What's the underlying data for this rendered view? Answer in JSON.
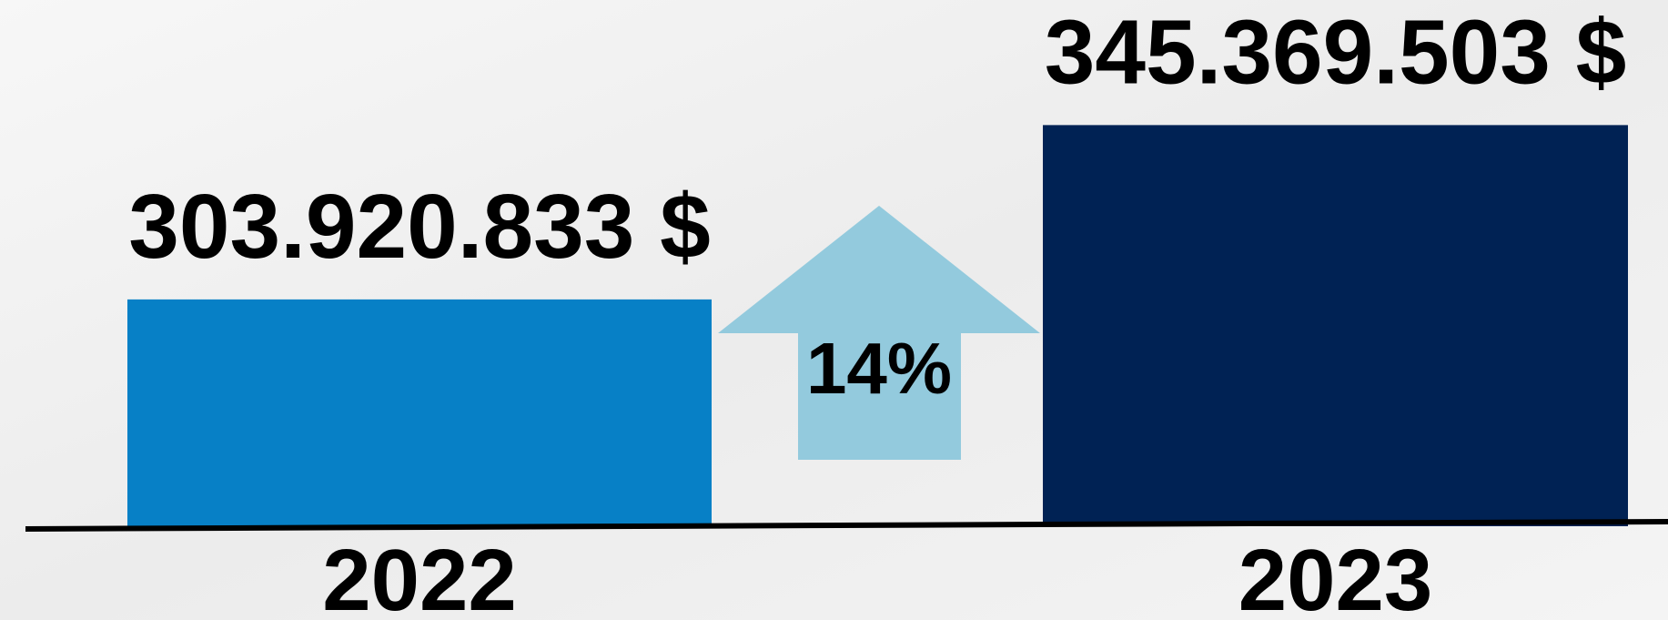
{
  "chart_data": {
    "type": "bar",
    "categories": [
      "2022",
      "2023"
    ],
    "values": [
      303920833,
      345369503
    ],
    "value_labels": [
      "303.920.833 $",
      "345.369.503 $"
    ],
    "colors": [
      "#0780c6",
      "#002254"
    ],
    "ylim": [
      250000000,
      350000000
    ],
    "annotation": "14%",
    "annotation_color": "#93cadd"
  }
}
